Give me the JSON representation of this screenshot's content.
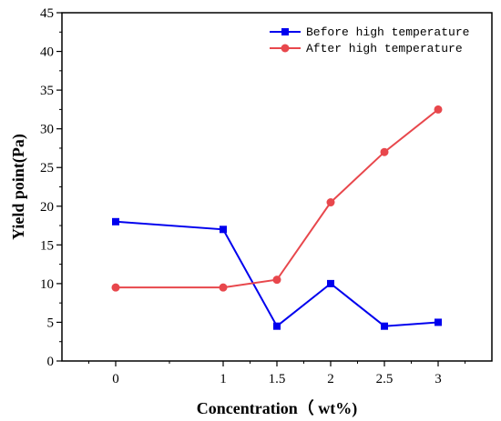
{
  "chart_data": {
    "type": "line",
    "title": "",
    "xlabel": "Concentration（ wt%)",
    "ylabel": "Yield point(Pa)",
    "categories": [
      "0",
      "1",
      "1.5",
      "2",
      "2.5",
      "3"
    ],
    "ylim": [
      0,
      45
    ],
    "yticks": [
      0,
      5,
      10,
      15,
      20,
      25,
      30,
      35,
      40,
      45
    ],
    "grid": false,
    "legend_position": "top-right",
    "series": [
      {
        "name": "Before high temperature",
        "color": "#0000ee",
        "marker": "square",
        "values": [
          18,
          17,
          4.5,
          10,
          4.5,
          5
        ]
      },
      {
        "name": "After high temperature",
        "color": "#e8474c",
        "marker": "circle",
        "values": [
          9.5,
          9.5,
          10.5,
          20.5,
          27,
          32.5
        ]
      }
    ]
  }
}
